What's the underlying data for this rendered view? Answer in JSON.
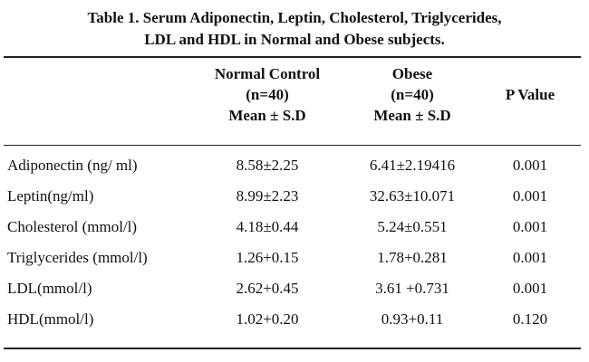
{
  "caption": {
    "line1": "Table 1. Serum Adiponectin, Leptin, Cholesterol, Triglycerides,",
    "line2": "LDL and HDL in Normal and Obese subjects."
  },
  "headers": {
    "normal": [
      "Normal Control",
      "(n=40)",
      "Mean ± S.D"
    ],
    "obese": [
      "Obese",
      "(n=40)",
      "Mean ± S.D"
    ],
    "pvalue": "P Value"
  },
  "rows": [
    {
      "label": "Adiponectin (ng/ ml)",
      "normal": "8.58±2.25",
      "obese": "6.41±2.19416",
      "p": "0.001"
    },
    {
      "label": "Leptin(ng/ml)",
      "normal": "8.99±2.23",
      "obese": "32.63±10.071",
      "p": "0.001"
    },
    {
      "label": "Cholesterol (mmol/l)",
      "normal": "4.18±0.44",
      "obese": "5.24±0.551",
      "p": "0.001"
    },
    {
      "label": "Triglycerides (mmol/l)",
      "normal": "1.26+0.15",
      "obese": "1.78+0.281",
      "p": "0.001"
    },
    {
      "label": "LDL(mmol/l)",
      "normal": "2.62+0.45",
      "obese": "3.61 +0.731",
      "p": "0.001"
    },
    {
      "label": "HDL(mmol/l)",
      "normal": "1.02+0.20",
      "obese": "0.93+0.11",
      "p": "0.120"
    }
  ]
}
